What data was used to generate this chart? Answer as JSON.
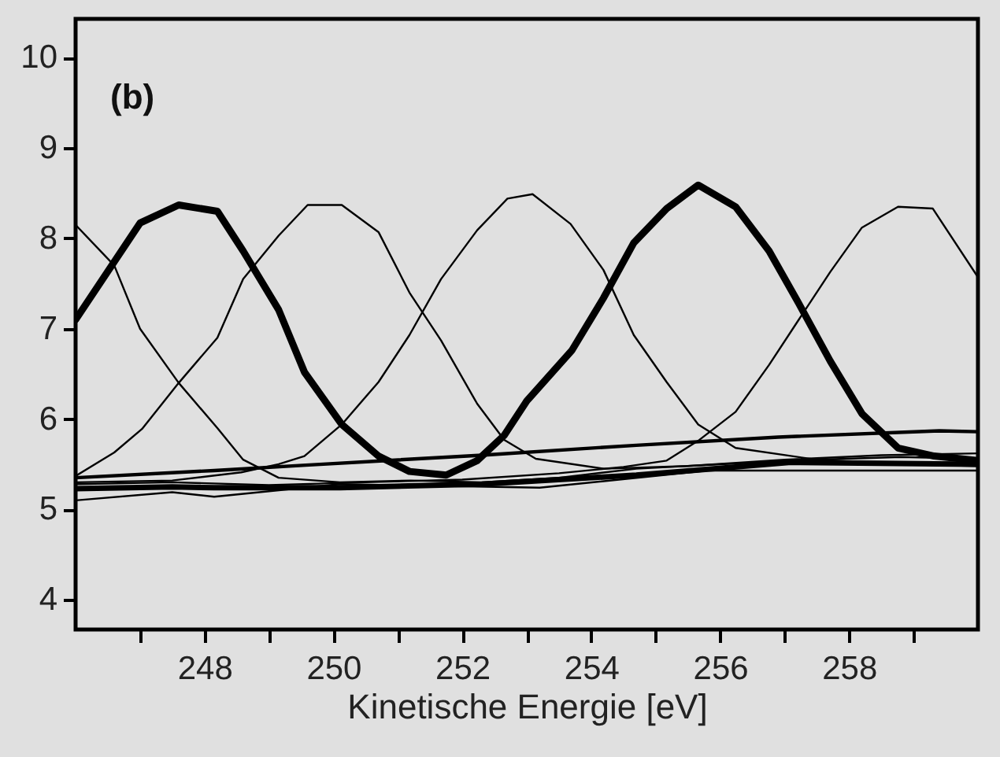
{
  "chart_data": {
    "type": "line",
    "xlabel": "Kinetische Energie [eV]",
    "annotations": [
      "(b)"
    ],
    "xlim": [
      246,
      260
    ],
    "ylim": [
      3.67,
      10.43
    ],
    "xticks": [
      {
        "value": 247,
        "label": null
      },
      248,
      {
        "value": 249,
        "label": null
      },
      250,
      {
        "value": 251,
        "label": null
      },
      252,
      {
        "value": 253,
        "label": null
      },
      254,
      {
        "value": 255,
        "label": null
      },
      256,
      {
        "value": 257,
        "label": null
      },
      258,
      {
        "value": 259,
        "label": null
      }
    ],
    "yticks": [
      4,
      5,
      6,
      7,
      8,
      9,
      10
    ],
    "grid": false,
    "marker": "none",
    "line_style": "solid",
    "series": [
      {
        "color": "#000000",
        "x": [
          246,
          247.0,
          247.6,
          248.2,
          248.6,
          249.15,
          249.55,
          250.13,
          250.7,
          251.18,
          251.75,
          252.23,
          252.65,
          253.0,
          253.7,
          254.19,
          254.66,
          255.17,
          255.66,
          256.24,
          256.76,
          257.22,
          257.71,
          258.2,
          258.76,
          259.32,
          260
        ],
        "values": [
          7.1,
          8.17,
          8.37,
          8.3,
          7.86,
          7.21,
          6.52,
          5.94,
          5.59,
          5.42,
          5.38,
          5.54,
          5.82,
          6.2,
          6.76,
          7.34,
          7.95,
          8.33,
          8.59,
          8.35,
          7.86,
          7.28,
          6.64,
          6.06,
          5.68,
          5.59,
          5.54
        ]
      },
      {
        "color": "#000000",
        "x": [
          246,
          247.5,
          248.15,
          250.1,
          252.3,
          254.7,
          257.1,
          260
        ],
        "values": [
          5.23,
          5.25,
          5.24,
          5.24,
          5.28,
          5.38,
          5.52,
          5.5
        ]
      },
      {
        "color": "#000000",
        "x": [
          246,
          248.15,
          249.57,
          252.3,
          254.7,
          256.9,
          259.4,
          260
        ],
        "values": [
          5.35,
          5.43,
          5.49,
          5.6,
          5.71,
          5.8,
          5.87,
          5.86
        ]
      },
      {
        "color": "#000000",
        "x": [
          246,
          246.6,
          247.0,
          247.6,
          248.2,
          248.6,
          249.15,
          250.1,
          251.2,
          252.3,
          253.5,
          254.7,
          256.0,
          257.5,
          258.8,
          260
        ],
        "values": [
          8.15,
          7.7,
          7.0,
          6.4,
          5.9,
          5.55,
          5.35,
          5.3,
          5.32,
          5.3,
          5.35,
          5.45,
          5.5,
          5.55,
          5.5,
          5.48
        ]
      },
      {
        "color": "#000000",
        "x": [
          246,
          246.6,
          247.03,
          247.6,
          248.2,
          248.6,
          249.15,
          249.6,
          250.13,
          250.7,
          251.18,
          251.67,
          252.23,
          252.65,
          253.14,
          254.2,
          255.5,
          257.0,
          258.5,
          260
        ],
        "values": [
          5.37,
          5.63,
          5.89,
          6.4,
          6.9,
          7.55,
          8.03,
          8.37,
          8.37,
          8.07,
          7.4,
          6.87,
          6.17,
          5.77,
          5.56,
          5.45,
          5.48,
          5.55,
          5.6,
          5.62
        ]
      },
      {
        "color": "#000000",
        "x": [
          246,
          247.5,
          248.57,
          249.15,
          249.55,
          250.13,
          250.7,
          251.18,
          251.67,
          252.23,
          252.7,
          253.09,
          253.68,
          254.19,
          254.66,
          255.17,
          255.66,
          256.24,
          257.5,
          258.8,
          260
        ],
        "values": [
          5.3,
          5.32,
          5.41,
          5.5,
          5.59,
          5.94,
          6.41,
          6.93,
          7.55,
          8.09,
          8.44,
          8.49,
          8.16,
          7.65,
          6.93,
          6.41,
          5.94,
          5.68,
          5.55,
          5.58,
          5.56
        ]
      },
      {
        "color": "#000000",
        "x": [
          246,
          247.5,
          249.0,
          250.5,
          252.0,
          253.5,
          254.5,
          255.17,
          255.66,
          256.24,
          256.76,
          257.22,
          257.71,
          258.2,
          258.76,
          259.3,
          260
        ],
        "values": [
          5.28,
          5.3,
          5.27,
          5.3,
          5.33,
          5.4,
          5.47,
          5.54,
          5.76,
          6.08,
          6.6,
          7.1,
          7.63,
          8.12,
          8.35,
          8.33,
          7.57
        ]
      },
      {
        "color": "#000000",
        "x": [
          246,
          247.5,
          248.15,
          250.1,
          253.2,
          255.8,
          259,
          260
        ],
        "values": [
          5.1,
          5.19,
          5.14,
          5.28,
          5.24,
          5.43,
          5.43,
          5.43
        ]
      }
    ]
  }
}
